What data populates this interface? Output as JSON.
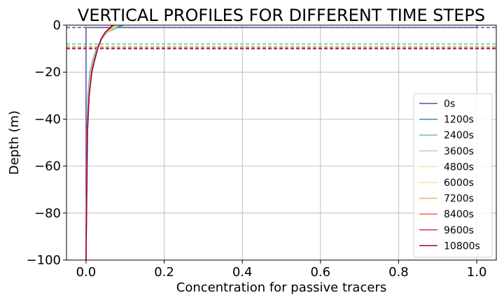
{
  "chart_data": {
    "type": "line",
    "title": "VERTICAL PROFILES FOR DIFFERENT TIME STEPS",
    "xlabel": "Concentration for passive tracers",
    "ylabel": "Depth (m)",
    "xlim": [
      -0.05,
      1.05
    ],
    "ylim": [
      -100,
      0
    ],
    "xticks": [
      0.0,
      0.2,
      0.4,
      0.6,
      0.8,
      1.0
    ],
    "xtick_labels": [
      "0.0",
      "0.2",
      "0.4",
      "0.6",
      "0.8",
      "1.0"
    ],
    "yticks": [
      0,
      -20,
      -40,
      -60,
      -80,
      -100
    ],
    "ytick_labels": [
      "0",
      "−20",
      "−40",
      "−60",
      "−80",
      "−100"
    ],
    "grid": true,
    "legend_position": "lower-right",
    "reference_lines": [
      {
        "y": -1,
        "color": "#5e4fa2",
        "style": "dashed"
      },
      {
        "y": -8,
        "color": "#66c2a5",
        "style": "dashed"
      },
      {
        "y": -9,
        "color": "#abdda4",
        "style": "dashed"
      },
      {
        "y": -9.5,
        "color": "#f46d43",
        "style": "dashed"
      },
      {
        "y": -10,
        "color": "#9e0142",
        "style": "dashed"
      }
    ],
    "series": [
      {
        "name": "0s",
        "color": "#5e4fa2",
        "points": [
          [
            1.0,
            0
          ],
          [
            1.0,
            -1
          ],
          [
            0.0,
            -1
          ],
          [
            0.0,
            -100
          ]
        ]
      },
      {
        "name": "1200s",
        "color": "#3288bd",
        "points": [
          [
            0.095,
            0
          ],
          [
            0.08,
            -1
          ],
          [
            0.055,
            -3
          ],
          [
            0.04,
            -6
          ],
          [
            0.027,
            -10
          ],
          [
            0.017,
            -15
          ],
          [
            0.01,
            -20
          ],
          [
            0.005,
            -30
          ],
          [
            0.002,
            -45
          ],
          [
            0.0,
            -100
          ]
        ]
      },
      {
        "name": "2400s",
        "color": "#66c2a5",
        "points": [
          [
            0.09,
            0
          ],
          [
            0.077,
            -1
          ],
          [
            0.055,
            -3
          ],
          [
            0.04,
            -6
          ],
          [
            0.028,
            -10
          ],
          [
            0.018,
            -15
          ],
          [
            0.011,
            -20
          ],
          [
            0.006,
            -30
          ],
          [
            0.003,
            -45
          ],
          [
            0.0,
            -100
          ]
        ]
      },
      {
        "name": "3600s",
        "color": "#abdda4",
        "points": [
          [
            0.085,
            0
          ],
          [
            0.074,
            -1
          ],
          [
            0.054,
            -3
          ],
          [
            0.04,
            -6
          ],
          [
            0.029,
            -10
          ],
          [
            0.019,
            -15
          ],
          [
            0.012,
            -20
          ],
          [
            0.006,
            -30
          ],
          [
            0.003,
            -45
          ],
          [
            0.0,
            -100
          ]
        ]
      },
      {
        "name": "4800s",
        "color": "#e6f598",
        "points": [
          [
            0.08,
            0
          ],
          [
            0.071,
            -1
          ],
          [
            0.053,
            -3
          ],
          [
            0.04,
            -6
          ],
          [
            0.029,
            -10
          ],
          [
            0.02,
            -15
          ],
          [
            0.013,
            -20
          ],
          [
            0.007,
            -30
          ],
          [
            0.003,
            -45
          ],
          [
            0.0,
            -100
          ]
        ]
      },
      {
        "name": "6000s",
        "color": "#fee08b",
        "points": [
          [
            0.077,
            0
          ],
          [
            0.069,
            -1
          ],
          [
            0.052,
            -3
          ],
          [
            0.039,
            -6
          ],
          [
            0.029,
            -10
          ],
          [
            0.02,
            -15
          ],
          [
            0.013,
            -20
          ],
          [
            0.007,
            -30
          ],
          [
            0.003,
            -45
          ],
          [
            0.0,
            -100
          ]
        ]
      },
      {
        "name": "7200s",
        "color": "#fdae61",
        "points": [
          [
            0.074,
            0
          ],
          [
            0.067,
            -1
          ],
          [
            0.051,
            -3
          ],
          [
            0.039,
            -6
          ],
          [
            0.029,
            -10
          ],
          [
            0.021,
            -15
          ],
          [
            0.014,
            -20
          ],
          [
            0.007,
            -30
          ],
          [
            0.003,
            -45
          ],
          [
            0.0,
            -100
          ]
        ]
      },
      {
        "name": "8400s",
        "color": "#f46d43",
        "points": [
          [
            0.071,
            0
          ],
          [
            0.065,
            -1
          ],
          [
            0.05,
            -3
          ],
          [
            0.039,
            -6
          ],
          [
            0.03,
            -10
          ],
          [
            0.021,
            -15
          ],
          [
            0.014,
            -20
          ],
          [
            0.008,
            -30
          ],
          [
            0.003,
            -45
          ],
          [
            0.0,
            -100
          ]
        ]
      },
      {
        "name": "9600s",
        "color": "#d53e4f",
        "points": [
          [
            0.069,
            0
          ],
          [
            0.063,
            -1
          ],
          [
            0.05,
            -3
          ],
          [
            0.039,
            -6
          ],
          [
            0.03,
            -10
          ],
          [
            0.021,
            -15
          ],
          [
            0.014,
            -20
          ],
          [
            0.008,
            -30
          ],
          [
            0.003,
            -45
          ],
          [
            0.0,
            -100
          ]
        ]
      },
      {
        "name": "10800s",
        "color": "#9e0142",
        "points": [
          [
            0.067,
            0
          ],
          [
            0.062,
            -1
          ],
          [
            0.049,
            -3
          ],
          [
            0.038,
            -6
          ],
          [
            0.03,
            -10
          ],
          [
            0.022,
            -15
          ],
          [
            0.015,
            -20
          ],
          [
            0.008,
            -30
          ],
          [
            0.004,
            -45
          ],
          [
            0.0,
            -100
          ]
        ]
      }
    ]
  }
}
